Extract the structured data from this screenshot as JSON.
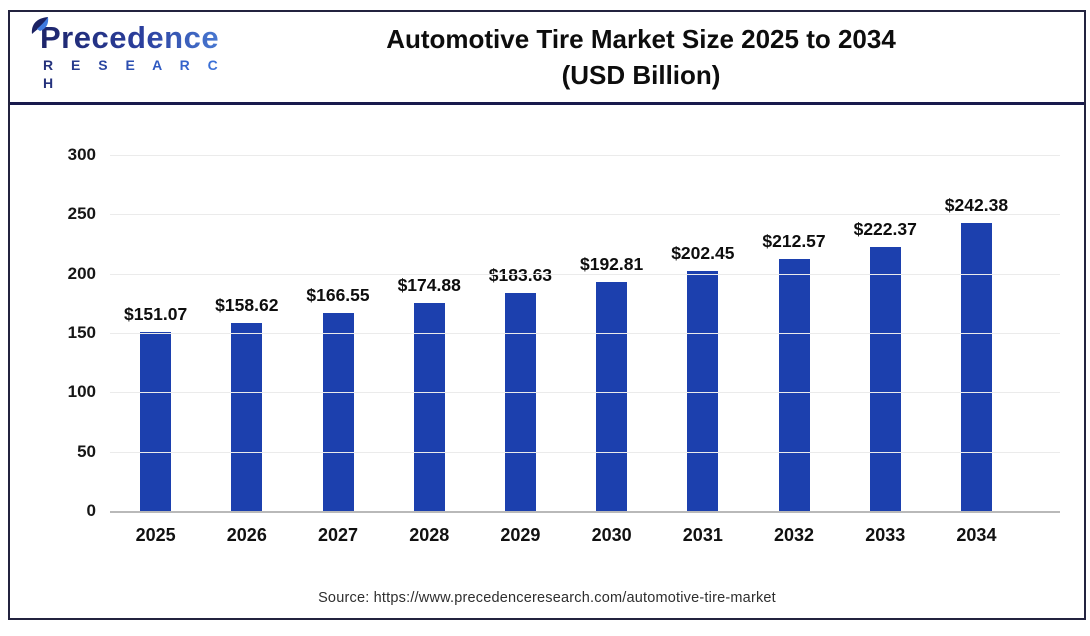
{
  "header": {
    "logo": {
      "line1": "Precedence",
      "line2": "R E S E A R C H",
      "icon": "leaf-icon"
    },
    "title_line1": "Automotive Tire Market Size 2025 to 2034",
    "title_line2": "(USD Billion)"
  },
  "chart_data": {
    "type": "bar",
    "title": "Automotive Tire Market Size 2025 to 2034 (USD Billion)",
    "categories": [
      "2025",
      "2026",
      "2027",
      "2028",
      "2029",
      "2030",
      "2031",
      "2032",
      "2033",
      "2034"
    ],
    "values": [
      151.07,
      158.62,
      166.55,
      174.88,
      183.63,
      192.81,
      202.45,
      212.57,
      222.37,
      242.38
    ],
    "value_labels": [
      "$151.07",
      "$158.62",
      "$166.55",
      "$174.88",
      "$183.63",
      "$192.81",
      "$202.45",
      "$212.57",
      "$222.37",
      "$242.38"
    ],
    "xlabel": "",
    "ylabel": "",
    "ylim": [
      0,
      300
    ],
    "yticks": [
      0,
      50,
      100,
      150,
      200,
      250,
      300
    ],
    "grid": true,
    "legend": false,
    "bar_color": "#1c40ae",
    "grid_color": "#ebebeb",
    "baseline_color": "#b9b9b9"
  },
  "footer": {
    "source": "Source: https://www.precedenceresearch.com/automotive-tire-market"
  }
}
